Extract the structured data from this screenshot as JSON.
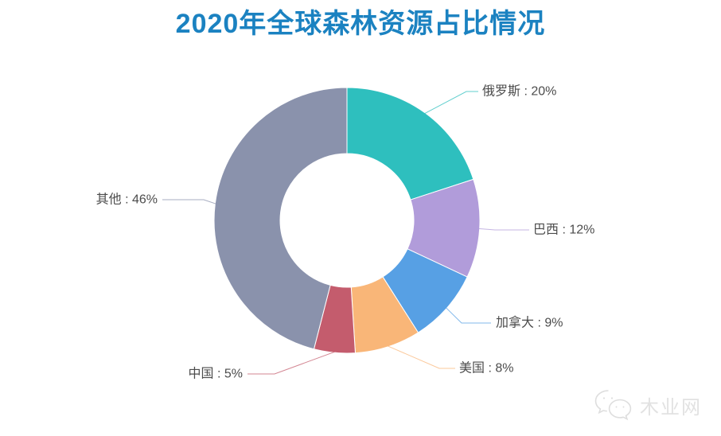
{
  "header": {
    "title": "2020年全球森林资源占比情况",
    "title_color": "#1b82c1"
  },
  "chart_data": {
    "type": "pie",
    "variant": "donut",
    "title": "2020年全球森林资源占比情况",
    "direction": "clockwise",
    "start_angle_deg": 0,
    "inner_radius_ratio": 0.5,
    "legend": "none",
    "label_color": "#4c4c4c",
    "categories": [
      "俄罗斯",
      "巴西",
      "加拿大",
      "美国",
      "中国",
      "其他"
    ],
    "values": [
      20,
      12,
      9,
      8,
      5,
      46
    ],
    "unit": "%",
    "slices": [
      {
        "name": "俄罗斯",
        "value": 20,
        "color": "#2ebfbe",
        "label": "俄罗斯 : 20%"
      },
      {
        "name": "巴西",
        "value": 12,
        "color": "#b19cda",
        "label": "巴西 : 12%"
      },
      {
        "name": "加拿大",
        "value": 9,
        "color": "#57a0e4",
        "label": "加拿大 : 9%"
      },
      {
        "name": "美国",
        "value": 8,
        "color": "#f9b678",
        "label": "美国 : 8%"
      },
      {
        "name": "中国",
        "value": 5,
        "color": "#c45c6d",
        "label": "中国 : 5%"
      },
      {
        "name": "其他",
        "value": 46,
        "color": "#8a92ac",
        "label": "其他 : 46%"
      }
    ]
  },
  "watermark": {
    "icon": "wechat-icon",
    "text": "木业网",
    "color": "#e2e2e2"
  }
}
